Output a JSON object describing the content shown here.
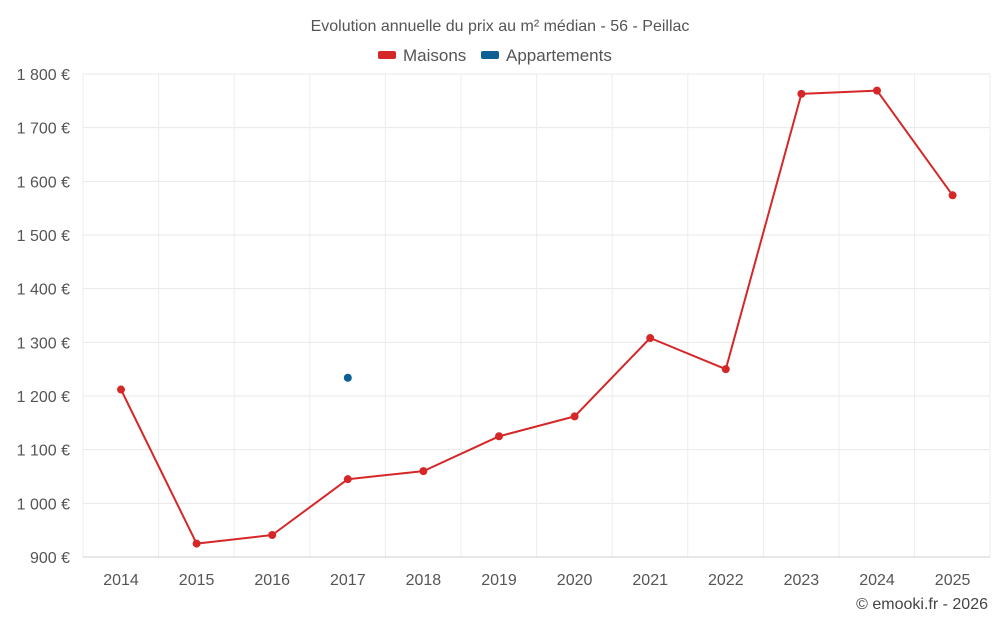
{
  "chart_data": {
    "type": "line",
    "title": "Evolution annuelle du prix au m² médian - 56 - Peillac",
    "categories": [
      "2014",
      "2015",
      "2016",
      "2017",
      "2018",
      "2019",
      "2020",
      "2021",
      "2022",
      "2023",
      "2024",
      "2025"
    ],
    "series": [
      {
        "name": "Maisons",
        "color": "#d62728",
        "values": [
          1212,
          925,
          941,
          1045,
          1060,
          1125,
          1162,
          1308,
          1250,
          1763,
          1769,
          1574
        ]
      },
      {
        "name": "Appartements",
        "color": "#0f5f97",
        "values": [
          null,
          null,
          null,
          1234,
          null,
          null,
          null,
          null,
          null,
          null,
          null,
          null
        ]
      }
    ],
    "ylim": [
      900,
      1800
    ],
    "yticks": [
      900,
      1000,
      1100,
      1200,
      1300,
      1400,
      1500,
      1600,
      1700,
      1800
    ],
    "ytick_labels": [
      "900 €",
      "1 000 €",
      "1 100 €",
      "1 200 €",
      "1 300 €",
      "1 400 €",
      "1 500 €",
      "1 600 €",
      "1 700 €",
      "1 800 €"
    ],
    "xlabel": "",
    "ylabel": "",
    "grid": true,
    "legend_position": "top-center"
  },
  "credit": "© emooki.fr - 2026"
}
